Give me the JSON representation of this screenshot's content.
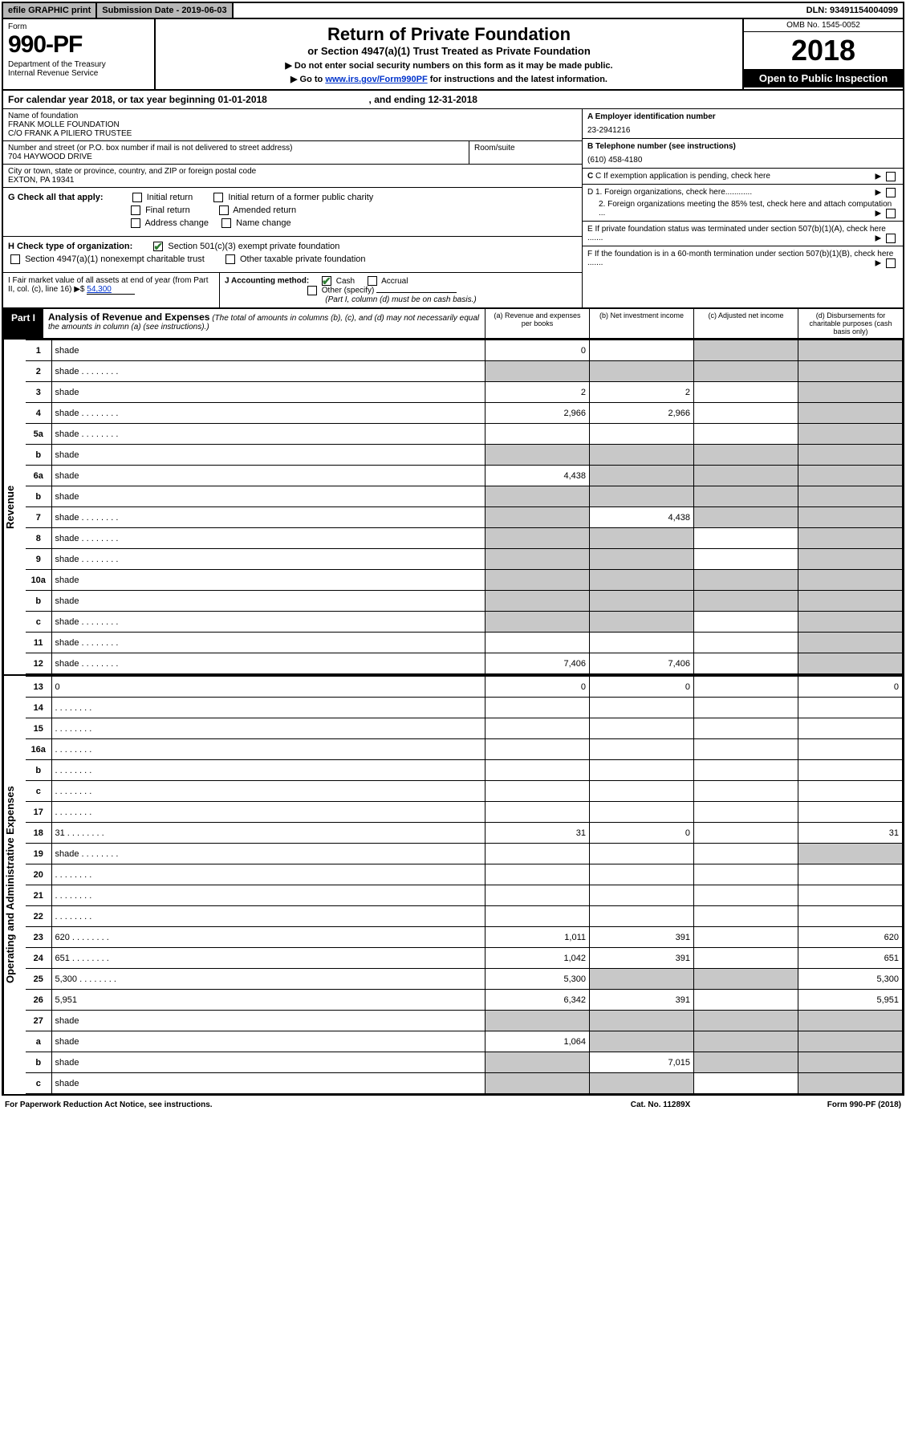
{
  "topbar": {
    "efile": "efile GRAPHIC print",
    "subdate_label": "Submission Date - 2019-06-03",
    "dln": "DLN: 93491154004099"
  },
  "header": {
    "form": "Form",
    "formno": "990-PF",
    "dept": "Department of the Treasury\nInternal Revenue Service",
    "title": "Return of Private Foundation",
    "subtitle": "or Section 4947(a)(1) Trust Treated as Private Foundation",
    "note1": "▶ Do not enter social security numbers on this form as it may be made public.",
    "note2_pre": "▶ Go to ",
    "note2_link": "www.irs.gov/Form990PF",
    "note2_post": " for instructions and the latest information.",
    "omb": "OMB No. 1545-0052",
    "year": "2018",
    "open": "Open to Public Inspection"
  },
  "calyear": {
    "pre": "For calendar year 2018, or tax year beginning ",
    "begin": "01-01-2018",
    "mid": ", and ending ",
    "end": "12-31-2018"
  },
  "info": {
    "name_lbl": "Name of foundation",
    "name": "FRANK MOLLE FOUNDATION\nC/O FRANK A PILIERO TRUSTEE",
    "addr_lbl": "Number and street (or P.O. box number if mail is not delivered to street address)",
    "addr": "704 HAYWOOD DRIVE",
    "room_lbl": "Room/suite",
    "city_lbl": "City or town, state or province, country, and ZIP or foreign postal code",
    "city": "EXTON, PA  19341",
    "a_lbl": "A Employer identification number",
    "a_val": "23-2941216",
    "b_lbl": "B Telephone number (see instructions)",
    "b_val": "(610) 458-4180",
    "c_lbl": "C If exemption application is pending, check here",
    "d1_lbl": "D 1. Foreign organizations, check here............",
    "d2_lbl": "2. Foreign organizations meeting the 85% test, check here and attach computation ...",
    "e_lbl": "E  If private foundation status was terminated under section 507(b)(1)(A), check here .......",
    "f_lbl": "F  If the foundation is in a 60-month termination under section 507(b)(1)(B), check here .......",
    "g_lbl": "G Check all that apply:",
    "g_opts": [
      "Initial return",
      "Initial return of a former public charity",
      "Final return",
      "Amended return",
      "Address change",
      "Name change"
    ],
    "h_lbl": "H Check type of organization:",
    "h_opts": [
      "Section 501(c)(3) exempt private foundation",
      "Section 4947(a)(1) nonexempt charitable trust",
      "Other taxable private foundation"
    ],
    "i_lbl": "I Fair market value of all assets at end of year (from Part II, col. (c), line 16) ▶$ ",
    "i_val": "54,300",
    "j_lbl": "J Accounting method:",
    "j_opts": [
      "Cash",
      "Accrual",
      "Other (specify)"
    ],
    "j_note": "(Part I, column (d) must be on cash basis.)"
  },
  "part1": {
    "tab": "Part I",
    "title": "Analysis of Revenue and Expenses",
    "title_note": "(The total of amounts in columns (b), (c), and (d) may not necessarily equal the amounts in column (a) (see instructions).)",
    "cols": {
      "a": "(a)   Revenue and expenses per books",
      "b": "(b)  Net investment income",
      "c": "(c)  Adjusted net income",
      "d": "(d)  Disbursements for charitable purposes (cash basis only)"
    }
  },
  "sidebars": {
    "rev": "Revenue",
    "exp": "Operating and Administrative Expenses"
  },
  "lines": [
    {
      "n": "1",
      "d": "shade",
      "a": "0",
      "b": "",
      "c": "shade"
    },
    {
      "n": "2",
      "d": "shade",
      "dots": true,
      "a": "shade",
      "b": "shade",
      "c": "shade"
    },
    {
      "n": "3",
      "d": "shade",
      "a": "2",
      "b": "2",
      "c": ""
    },
    {
      "n": "4",
      "d": "shade",
      "dots": true,
      "a": "2,966",
      "b": "2,966",
      "c": ""
    },
    {
      "n": "5a",
      "d": "shade",
      "dots": true,
      "a": "",
      "b": "",
      "c": ""
    },
    {
      "n": "b",
      "d": "shade",
      "a": "shade",
      "b": "shade",
      "c": "shade"
    },
    {
      "n": "6a",
      "d": "shade",
      "a": "4,438",
      "b": "shade",
      "c": "shade"
    },
    {
      "n": "b",
      "d": "shade",
      "a": "shade",
      "b": "shade",
      "c": "shade"
    },
    {
      "n": "7",
      "d": "shade",
      "dots": true,
      "a": "shade",
      "b": "4,438",
      "c": "shade"
    },
    {
      "n": "8",
      "d": "shade",
      "dots": true,
      "a": "shade",
      "b": "shade",
      "c": ""
    },
    {
      "n": "9",
      "d": "shade",
      "dots": true,
      "a": "shade",
      "b": "shade",
      "c": ""
    },
    {
      "n": "10a",
      "d": "shade",
      "a": "shade",
      "b": "shade",
      "c": "shade"
    },
    {
      "n": "b",
      "d": "shade",
      "a": "shade",
      "b": "shade",
      "c": "shade"
    },
    {
      "n": "c",
      "d": "shade",
      "dots": true,
      "a": "shade",
      "b": "shade",
      "c": ""
    },
    {
      "n": "11",
      "d": "shade",
      "dots": true,
      "a": "",
      "b": "",
      "c": ""
    },
    {
      "n": "12",
      "d": "shade",
      "dots": true,
      "a": "7,406",
      "b": "7,406",
      "c": ""
    }
  ],
  "lines2": [
    {
      "n": "13",
      "d": "0",
      "a": "0",
      "b": "0",
      "c": ""
    },
    {
      "n": "14",
      "d": "",
      "dots": true,
      "a": "",
      "b": "",
      "c": ""
    },
    {
      "n": "15",
      "d": "",
      "dots": true,
      "a": "",
      "b": "",
      "c": ""
    },
    {
      "n": "16a",
      "d": "",
      "dots": true,
      "a": "",
      "b": "",
      "c": ""
    },
    {
      "n": "b",
      "d": "",
      "dots": true,
      "a": "",
      "b": "",
      "c": ""
    },
    {
      "n": "c",
      "d": "",
      "dots": true,
      "a": "",
      "b": "",
      "c": ""
    },
    {
      "n": "17",
      "d": "",
      "dots": true,
      "a": "",
      "b": "",
      "c": ""
    },
    {
      "n": "18",
      "d": "31",
      "dots": true,
      "a": "31",
      "b": "0",
      "c": ""
    },
    {
      "n": "19",
      "d": "shade",
      "dots": true,
      "a": "",
      "b": "",
      "c": ""
    },
    {
      "n": "20",
      "d": "",
      "dots": true,
      "a": "",
      "b": "",
      "c": ""
    },
    {
      "n": "21",
      "d": "",
      "dots": true,
      "a": "",
      "b": "",
      "c": ""
    },
    {
      "n": "22",
      "d": "",
      "dots": true,
      "a": "",
      "b": "",
      "c": ""
    },
    {
      "n": "23",
      "d": "620",
      "dots": true,
      "a": "1,011",
      "b": "391",
      "c": ""
    },
    {
      "n": "24",
      "d": "651",
      "dots": true,
      "a": "1,042",
      "b": "391",
      "c": ""
    },
    {
      "n": "25",
      "d": "5,300",
      "dots": true,
      "a": "5,300",
      "b": "shade",
      "c": "shade"
    },
    {
      "n": "26",
      "d": "5,951",
      "a": "6,342",
      "b": "391",
      "c": ""
    },
    {
      "n": "27",
      "d": "shade",
      "a": "shade",
      "b": "shade",
      "c": "shade"
    },
    {
      "n": "a",
      "d": "shade",
      "a": "1,064",
      "b": "shade",
      "c": "shade"
    },
    {
      "n": "b",
      "d": "shade",
      "a": "shade",
      "b": "7,015",
      "c": "shade"
    },
    {
      "n": "c",
      "d": "shade",
      "a": "shade",
      "b": "shade",
      "c": ""
    }
  ],
  "footer": {
    "left": "For Paperwork Reduction Act Notice, see instructions.",
    "mid": "Cat. No. 11289X",
    "right": "Form 990-PF (2018)"
  }
}
